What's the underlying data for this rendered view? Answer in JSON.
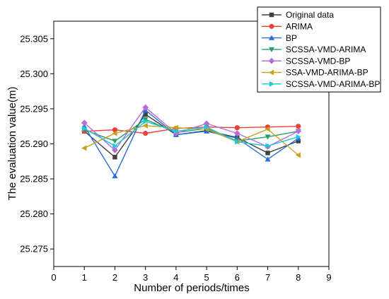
{
  "chart_data": {
    "type": "line",
    "xlabel": "Number of periods/times",
    "ylabel": "The evaluation value(m)",
    "xlim": [
      0,
      9
    ],
    "ylim": [
      25.2725,
      25.3075
    ],
    "x_ticks": [
      0,
      1,
      2,
      3,
      4,
      5,
      6,
      7,
      8,
      9
    ],
    "y_ticks": [
      "25.275",
      "25.280",
      "25.285",
      "25.290",
      "25.295",
      "25.300",
      "25.305"
    ],
    "y_tick_values": [
      25.275,
      25.28,
      25.285,
      25.29,
      25.295,
      25.3,
      25.305
    ],
    "legend_position": "top-right",
    "grid": false,
    "x": [
      1,
      2,
      3,
      4,
      5,
      6,
      7,
      8
    ],
    "series": [
      {
        "name": "Original data",
        "color": "#404040",
        "marker": "square",
        "values": [
          25.2918,
          25.2881,
          25.2942,
          25.2913,
          25.2919,
          25.2909,
          25.2887,
          25.2904
        ]
      },
      {
        "name": "ARIMA",
        "color": "#e8413a",
        "marker": "circle",
        "values": [
          25.2918,
          25.292,
          25.2915,
          25.2922,
          25.2924,
          25.2923,
          25.2924,
          25.2925
        ]
      },
      {
        "name": "BP",
        "color": "#2a6fd6",
        "marker": "triangle-up",
        "values": [
          25.2925,
          25.2854,
          25.2948,
          25.2913,
          25.2918,
          25.2908,
          25.2878,
          25.2908
        ]
      },
      {
        "name": "SCSSA-VMD-ARIMA",
        "color": "#2e9e60",
        "marker": "triangle-down",
        "values": [
          25.292,
          25.2904,
          25.2935,
          25.2916,
          25.2922,
          25.2904,
          25.291,
          25.2918
        ]
      },
      {
        "name": "SCSSA-VMD-BP",
        "color": "#b96bd8",
        "marker": "diamond",
        "values": [
          25.293,
          25.2891,
          25.2952,
          25.2915,
          25.2929,
          25.2915,
          25.2896,
          25.2918
        ]
      },
      {
        "name": "SSA-VMD-ARIMA-BP",
        "color": "#c9a01c",
        "marker": "triangle-left",
        "values": [
          25.2894,
          25.2915,
          25.2926,
          25.2923,
          25.2921,
          25.2903,
          25.2921,
          25.2884
        ]
      },
      {
        "name": "SCSSA-VMD-ARIMA-BP",
        "color": "#1ec8d8",
        "marker": "triangle-right",
        "values": [
          25.2922,
          25.2897,
          25.2932,
          25.2918,
          25.2924,
          25.2903,
          25.2897,
          25.291
        ]
      }
    ]
  }
}
